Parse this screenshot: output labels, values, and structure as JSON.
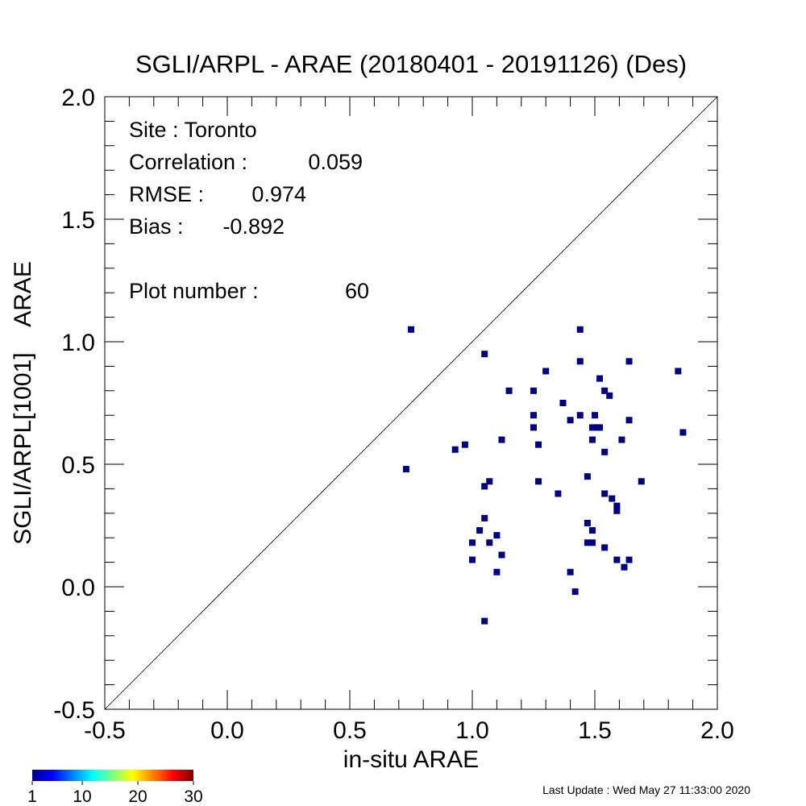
{
  "chart_data": {
    "type": "scatter",
    "title": "SGLI/ARPL - ARAE (20180401 - 20191126) (Des)",
    "xlabel": "in-situ ARAE",
    "ylabel": "SGLI/ARPL[1001]    ARAE",
    "xlim": [
      -0.5,
      2.0
    ],
    "ylim": [
      -0.5,
      2.0
    ],
    "xticks": [
      "-0.5",
      "0.0",
      "0.5",
      "1.0",
      "1.5",
      "2.0"
    ],
    "yticks": [
      "-0.5",
      "0.0",
      "0.5",
      "1.0",
      "1.5",
      "2.0"
    ],
    "reference_line": "1:1",
    "grid": false,
    "marker_color": "#000080",
    "stats": [
      {
        "label": "Site : Toronto",
        "value": ""
      },
      {
        "label": "Correlation :",
        "value": "0.059"
      },
      {
        "label": "RMSE :",
        "value": "0.974"
      },
      {
        "label": "Bias :",
        "value": "-0.892"
      },
      {
        "label": "Plot number :",
        "value": "60"
      }
    ],
    "points": [
      [
        0.75,
        1.05
      ],
      [
        0.73,
        0.48
      ],
      [
        0.93,
        0.56
      ],
      [
        0.97,
        0.58
      ],
      [
        1.05,
        0.95
      ],
      [
        1.05,
        0.41
      ],
      [
        1.07,
        0.43
      ],
      [
        1.05,
        0.28
      ],
      [
        1.03,
        0.23
      ],
      [
        1.0,
        0.18
      ],
      [
        1.0,
        0.11
      ],
      [
        1.07,
        0.18
      ],
      [
        1.1,
        0.21
      ],
      [
        1.12,
        0.13
      ],
      [
        1.1,
        0.06
      ],
      [
        1.05,
        -0.14
      ],
      [
        1.12,
        0.6
      ],
      [
        1.15,
        0.8
      ],
      [
        1.25,
        0.8
      ],
      [
        1.25,
        0.7
      ],
      [
        1.25,
        0.65
      ],
      [
        1.27,
        0.58
      ],
      [
        1.27,
        0.43
      ],
      [
        1.3,
        0.88
      ],
      [
        1.35,
        0.38
      ],
      [
        1.37,
        0.75
      ],
      [
        1.4,
        0.68
      ],
      [
        1.4,
        0.06
      ],
      [
        1.42,
        -0.02
      ],
      [
        1.44,
        1.05
      ],
      [
        1.44,
        0.92
      ],
      [
        1.44,
        0.7
      ],
      [
        1.47,
        0.45
      ],
      [
        1.47,
        0.26
      ],
      [
        1.47,
        0.18
      ],
      [
        1.49,
        0.18
      ],
      [
        1.49,
        0.23
      ],
      [
        1.49,
        0.6
      ],
      [
        1.49,
        0.65
      ],
      [
        1.5,
        0.7
      ],
      [
        1.51,
        0.65
      ],
      [
        1.52,
        0.85
      ],
      [
        1.54,
        0.8
      ],
      [
        1.54,
        0.55
      ],
      [
        1.54,
        0.38
      ],
      [
        1.54,
        0.16
      ],
      [
        1.56,
        0.78
      ],
      [
        1.57,
        0.36
      ],
      [
        1.59,
        0.33
      ],
      [
        1.59,
        0.31
      ],
      [
        1.59,
        0.11
      ],
      [
        1.61,
        0.6
      ],
      [
        1.62,
        0.08
      ],
      [
        1.64,
        0.92
      ],
      [
        1.64,
        0.68
      ],
      [
        1.64,
        0.11
      ],
      [
        1.69,
        0.43
      ],
      [
        1.84,
        0.88
      ],
      [
        1.86,
        0.63
      ],
      [
        1.52,
        0.65
      ]
    ],
    "colorbar": {
      "ticks": [
        "1",
        "10",
        "20",
        "30"
      ],
      "min": 1,
      "max": 30
    },
    "footer": "Last Update : Wed May 27 11:33:00 2020"
  }
}
